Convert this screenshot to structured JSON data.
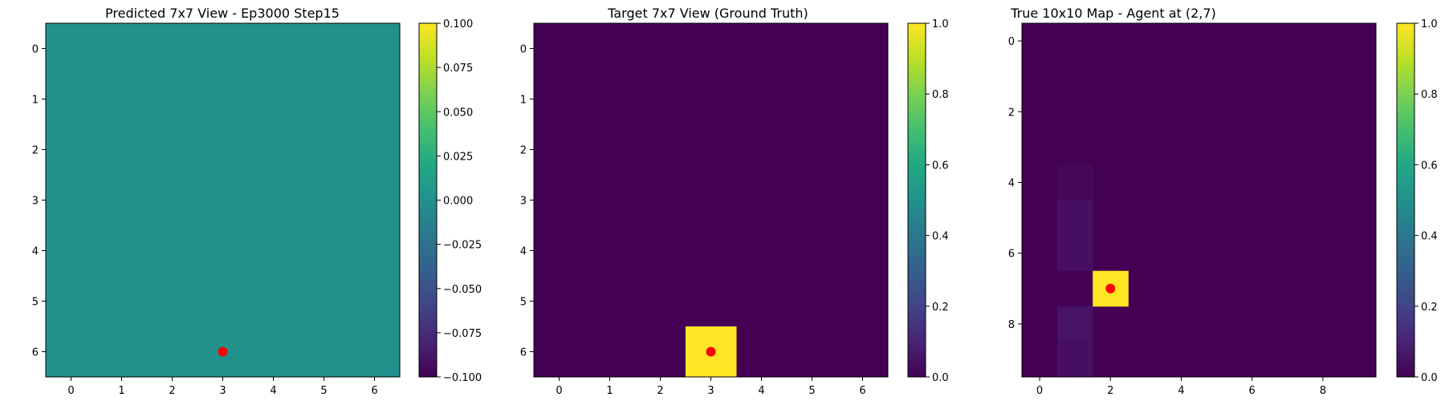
{
  "chart_data": [
    {
      "type": "heatmap",
      "title": "Predicted 7x7 View - Ep3000 Step15",
      "grid_size": 7,
      "xticks": [
        0,
        1,
        2,
        3,
        4,
        5,
        6
      ],
      "yticks": [
        0,
        1,
        2,
        3,
        4,
        5,
        6
      ],
      "colorbar": {
        "min": -0.1,
        "max": 0.1,
        "ticks": [
          "0.100",
          "0.075",
          "0.050",
          "0.025",
          "0.000",
          "−0.025",
          "−0.050",
          "−0.075",
          "−0.100"
        ]
      },
      "colormap": "viridis",
      "fill_value": 0.0,
      "cells": [],
      "marker": {
        "row": 6,
        "col": 3,
        "color": "#ff0000"
      }
    },
    {
      "type": "heatmap",
      "title": "Target 7x7 View (Ground Truth)",
      "grid_size": 7,
      "xticks": [
        0,
        1,
        2,
        3,
        4,
        5,
        6
      ],
      "yticks": [
        0,
        1,
        2,
        3,
        4,
        5,
        6
      ],
      "colorbar": {
        "min": 0,
        "max": 1,
        "ticks": [
          "1.0",
          "0.8",
          "0.6",
          "0.4",
          "0.2",
          "0.0"
        ]
      },
      "colormap": "viridis",
      "fill_value": 0.0,
      "cells": [
        {
          "row": 6,
          "col": 3,
          "value": 1.0
        }
      ],
      "marker": {
        "row": 6,
        "col": 3,
        "color": "#ff0000"
      }
    },
    {
      "type": "heatmap",
      "title": "True 10x10 Map - Agent at (2,7)",
      "grid_size": 10,
      "xticks": [
        0,
        2,
        4,
        6,
        8
      ],
      "yticks": [
        0,
        2,
        4,
        6,
        8
      ],
      "colorbar": {
        "min": 0,
        "max": 1,
        "ticks": [
          "1.0",
          "0.8",
          "0.6",
          "0.4",
          "0.2",
          "0.0"
        ]
      },
      "colormap": "viridis",
      "fill_value": 0.0,
      "cells": [
        {
          "row": 4,
          "col": 1,
          "value": 0.02
        },
        {
          "row": 5,
          "col": 1,
          "value": 0.04
        },
        {
          "row": 6,
          "col": 1,
          "value": 0.04
        },
        {
          "row": 7,
          "col": 2,
          "value": 1.0
        },
        {
          "row": 8,
          "col": 1,
          "value": 0.05
        },
        {
          "row": 9,
          "col": 1,
          "value": 0.04
        }
      ],
      "marker": {
        "row": 7,
        "col": 2,
        "color": "#ff0000"
      }
    }
  ]
}
